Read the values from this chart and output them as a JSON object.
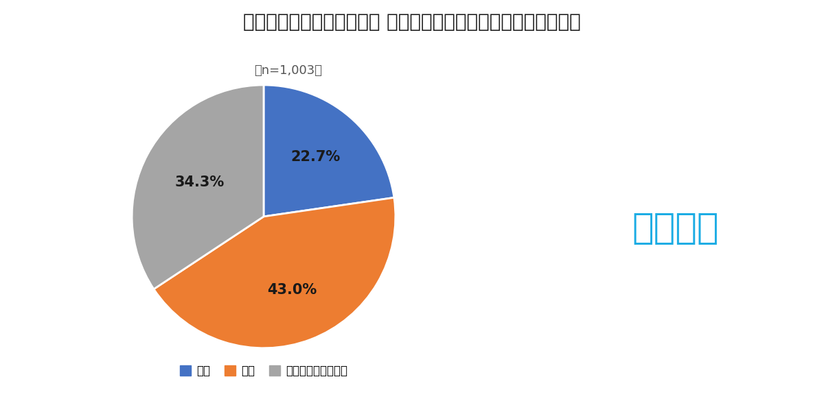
{
  "title": "「ギャンブル依存症治療」 の保険適用に対してどう思いますか？",
  "subtitle": "（n=1,003）",
  "slices": [
    22.7,
    43.0,
    34.3
  ],
  "labels": [
    "賛成",
    "反対",
    "どちらとも言えない"
  ],
  "colors": [
    "#4472C4",
    "#ED7D31",
    "#A5A5A5"
  ],
  "pct_labels": [
    "22.7%",
    "43.0%",
    "34.3%"
  ],
  "pct_colors": [
    "#1a1a1a",
    "#1a1a1a",
    "#1a1a1a"
  ],
  "startangle": 90,
  "logo_text": "エアトリ",
  "logo_color": "#1BACE4",
  "background_color": "#FFFFFF",
  "title_fontsize": 20,
  "subtitle_fontsize": 13,
  "pct_fontsize": 15,
  "legend_fontsize": 12
}
